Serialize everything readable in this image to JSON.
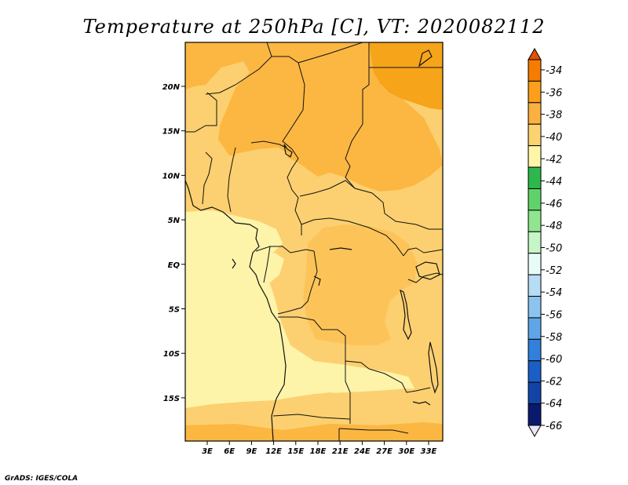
{
  "title": "Temperature at 250hPa [C], VT: 2020082112",
  "credit": "GrADS: IGES/COLA",
  "x_ticks": [
    "3E",
    "6E",
    "9E",
    "12E",
    "15E",
    "18E",
    "21E",
    "24E",
    "27E",
    "30E",
    "33E"
  ],
  "y_ticks": [
    "20N",
    "15N",
    "10N",
    "5N",
    "EQ",
    "5S",
    "10S",
    "15S"
  ],
  "colorbar": {
    "labels": [
      "-34",
      "-36",
      "-38",
      "-40",
      "-42",
      "-44",
      "-46",
      "-48",
      "-50",
      "-52",
      "-54",
      "-56",
      "-58",
      "-60",
      "-62",
      "-64",
      "-66"
    ],
    "colors": [
      "#e65100",
      "#f57c00",
      "#fb9f1c",
      "#fbb040",
      "#fcd371",
      "#fef5a9",
      "#2db84d",
      "#5fd36a",
      "#8fe68f",
      "#c6f5c6",
      "#e8fbf9",
      "#b7dcf5",
      "#8bc4ef",
      "#5ea6e8",
      "#3080dc",
      "#1b5fc6",
      "#1244a8",
      "#091a6e",
      "#e8e8f8"
    ]
  },
  "legend_colors": {
    "t_minus36": "#f6a41a",
    "t_minus38": "#fbb742",
    "t_minus40": "#fcd070",
    "t_minus42": "#fef4a9"
  }
}
